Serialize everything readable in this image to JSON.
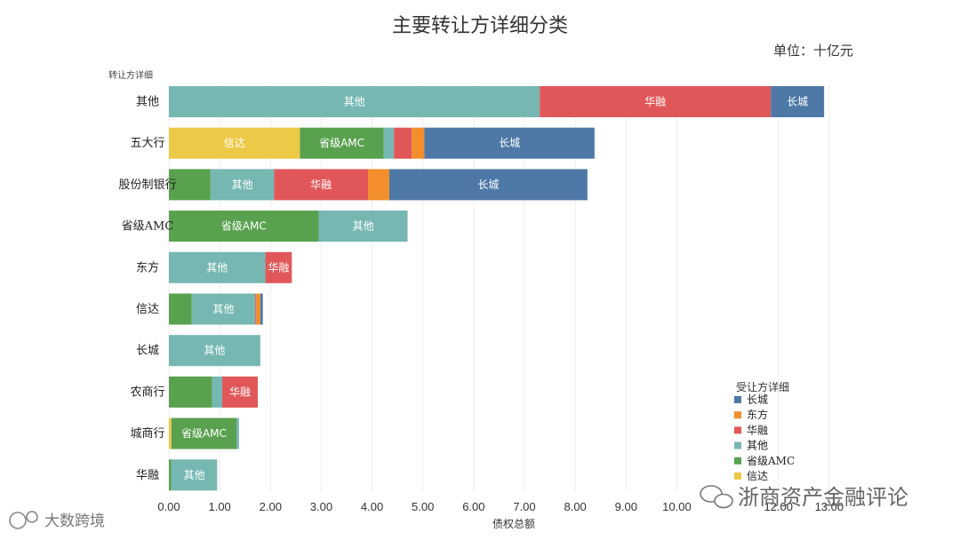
{
  "chart_data": {
    "type": "bar",
    "orientation": "horizontal",
    "stacked": true,
    "title": "主要转让方详细分类",
    "unit_label": "单位：十亿元",
    "y_header": "转让方详细",
    "xlabel": "债权总额",
    "xlim": [
      0,
      13.3
    ],
    "xticks": [
      0,
      1,
      2,
      3,
      4,
      5,
      6,
      7,
      8,
      9,
      10,
      12,
      13
    ],
    "xtick_labels": [
      "0.00",
      "1.00",
      "2.00",
      "3.00",
      "4.00",
      "5.00",
      "6.00",
      "7.00",
      "8.00",
      "9.00",
      "10.00",
      "12.00",
      "13.00"
    ],
    "categories": [
      "其他",
      "五大行",
      "股份制银行",
      "省级AMC",
      "东方",
      "信达",
      "长城",
      "农商行",
      "城商行",
      "华融"
    ],
    "segment_order": [
      "信达",
      "省级AMC",
      "其他",
      "华融",
      "东方",
      "长城"
    ],
    "series": [
      {
        "name": "长城",
        "color": "#4e79a7",
        "values": [
          1.05,
          3.35,
          3.9,
          0,
          0,
          0.05,
          0,
          0,
          0,
          0
        ]
      },
      {
        "name": "东方",
        "color": "#f28e2b",
        "values": [
          0,
          0.25,
          0.42,
          0,
          0,
          0.08,
          0,
          0,
          0,
          0
        ]
      },
      {
        "name": "华融",
        "color": "#e15759",
        "values": [
          4.55,
          0.35,
          1.85,
          0,
          0.52,
          0.02,
          0,
          0.7,
          0,
          0
        ]
      },
      {
        "name": "其他",
        "color": "#76b7b2",
        "values": [
          7.3,
          0.2,
          1.25,
          1.75,
          1.9,
          1.25,
          1.8,
          0.2,
          0.05,
          0.9
        ]
      },
      {
        "name": "省级AMC",
        "color": "#59a14f",
        "values": [
          0,
          1.65,
          0.82,
          2.95,
          0,
          0.45,
          0,
          0.85,
          1.28,
          0.05
        ]
      },
      {
        "name": "信达",
        "color": "#edc948",
        "values": [
          0,
          2.58,
          0,
          0,
          0,
          0,
          0,
          0,
          0.05,
          0
        ]
      }
    ],
    "segment_labels": [
      {
        "category": "其他",
        "series": "其他",
        "text": "其他"
      },
      {
        "category": "其他",
        "series": "华融",
        "text": "华融"
      },
      {
        "category": "其他",
        "series": "长城",
        "text": "长城"
      },
      {
        "category": "五大行",
        "series": "信达",
        "text": "信达"
      },
      {
        "category": "五大行",
        "series": "省级AMC",
        "text": "省级AMC"
      },
      {
        "category": "五大行",
        "series": "长城",
        "text": "长城"
      },
      {
        "category": "股份制银行",
        "series": "其他",
        "text": "其他"
      },
      {
        "category": "股份制银行",
        "series": "华融",
        "text": "华融"
      },
      {
        "category": "股份制银行",
        "series": "长城",
        "text": "长城"
      },
      {
        "category": "省级AMC",
        "series": "省级AMC",
        "text": "省级AMC"
      },
      {
        "category": "省级AMC",
        "series": "其他",
        "text": "其他"
      },
      {
        "category": "东方",
        "series": "其他",
        "text": "其他"
      },
      {
        "category": "东方",
        "series": "华融",
        "text": "华融"
      },
      {
        "category": "信达",
        "series": "其他",
        "text": "其他"
      },
      {
        "category": "长城",
        "series": "其他",
        "text": "其他"
      },
      {
        "category": "农商行",
        "series": "华融",
        "text": "华融"
      },
      {
        "category": "城商行",
        "series": "省级AMC",
        "text": "省级AMC"
      },
      {
        "category": "华融",
        "series": "其他",
        "text": "其他"
      }
    ],
    "legend": {
      "title": "受让方详细",
      "position": "bottom-right",
      "items": [
        "长城",
        "东方",
        "华融",
        "其他",
        "省级AMC",
        "信达"
      ]
    },
    "gridlines": "vertical"
  },
  "watermarks": {
    "bottom_right": "浙商资产金融评论",
    "bottom_left": "大数跨境"
  }
}
